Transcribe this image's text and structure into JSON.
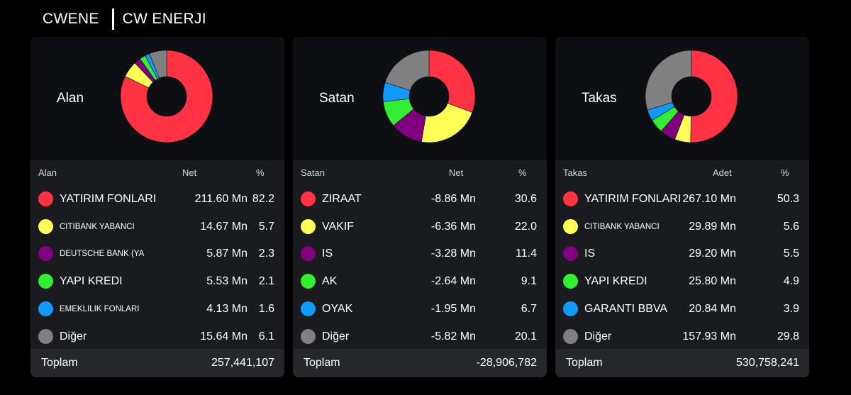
{
  "header": {
    "ticker": "CWENE",
    "company": "CW ENERJI"
  },
  "cards": [
    {
      "chart_label": "Alan",
      "col_name": "Alan",
      "col_value": "Net",
      "col_pct": "%",
      "rows": [
        {
          "name": "YATIRIM FONLARI",
          "value": "211.60 Mn",
          "pct": "82.2",
          "color": "#ff3344"
        },
        {
          "name": "CITIBANK YABANCI",
          "value": "14.67 Mn",
          "pct": "5.7",
          "color": "#ffff55"
        },
        {
          "name": "DEUTSCHE BANK (YA...",
          "value": "5.87 Mn",
          "pct": "2.3",
          "color": "#800080"
        },
        {
          "name": "YAPI KREDI",
          "value": "5.53 Mn",
          "pct": "2.1",
          "color": "#33ee33"
        },
        {
          "name": "EMEKLILIK FONLARI",
          "value": "4.13 Mn",
          "pct": "1.6",
          "color": "#1199ff"
        },
        {
          "name": "Diğer",
          "value": "15.64 Mn",
          "pct": "6.1",
          "color": "#808080"
        }
      ],
      "total_label": "Toplam",
      "total_value": "257,441,107"
    },
    {
      "chart_label": "Satan",
      "col_name": "Satan",
      "col_value": "Net",
      "col_pct": "%",
      "rows": [
        {
          "name": "ZIRAAT",
          "value": "-8.86 Mn",
          "pct": "30.6",
          "color": "#ff3344"
        },
        {
          "name": "VAKIF",
          "value": "-6.36 Mn",
          "pct": "22.0",
          "color": "#ffff55"
        },
        {
          "name": "IS",
          "value": "-3.28 Mn",
          "pct": "11.4",
          "color": "#800080"
        },
        {
          "name": "AK",
          "value": "-2.64 Mn",
          "pct": "9.1",
          "color": "#33ee33"
        },
        {
          "name": "OYAK",
          "value": "-1.95 Mn",
          "pct": "6.7",
          "color": "#1199ff"
        },
        {
          "name": "Diğer",
          "value": "-5.82 Mn",
          "pct": "20.1",
          "color": "#808080"
        }
      ],
      "total_label": "Toplam",
      "total_value": "-28,906,782"
    },
    {
      "chart_label": "Takas",
      "col_name": "Takas",
      "col_value": "Adet",
      "col_pct": "%",
      "rows": [
        {
          "name": "YATIRIM FONLARI",
          "value": "267.10 Mn",
          "pct": "50.3",
          "color": "#ff3344"
        },
        {
          "name": "CITIBANK YABANCI",
          "value": "29.89 Mn",
          "pct": "5.6",
          "color": "#ffff55"
        },
        {
          "name": "IS",
          "value": "29.20 Mn",
          "pct": "5.5",
          "color": "#800080"
        },
        {
          "name": "YAPI KREDI",
          "value": "25.80 Mn",
          "pct": "4.9",
          "color": "#33ee33"
        },
        {
          "name": "GARANTI BBVA",
          "value": "20.84 Mn",
          "pct": "3.9",
          "color": "#1199ff"
        },
        {
          "name": "Diğer",
          "value": "157.93 Mn",
          "pct": "29.8",
          "color": "#808080"
        }
      ],
      "total_label": "Toplam",
      "total_value": "530,758,241"
    }
  ],
  "chart_data": [
    {
      "type": "pie",
      "title": "Alan",
      "categories": [
        "YATIRIM FONLARI",
        "CITIBANK YABANCI",
        "DEUTSCHE BANK (YA...",
        "YAPI KREDI",
        "EMEKLILIK FONLARI",
        "Diğer"
      ],
      "values": [
        82.2,
        5.7,
        2.3,
        2.1,
        1.6,
        6.1
      ]
    },
    {
      "type": "pie",
      "title": "Satan",
      "categories": [
        "ZIRAAT",
        "VAKIF",
        "IS",
        "AK",
        "OYAK",
        "Diğer"
      ],
      "values": [
        30.6,
        22.0,
        11.4,
        9.1,
        6.7,
        20.1
      ]
    },
    {
      "type": "pie",
      "title": "Takas",
      "categories": [
        "YATIRIM FONLARI",
        "CITIBANK YABANCI",
        "IS",
        "YAPI KREDI",
        "GARANTI BBVA",
        "Diğer"
      ],
      "values": [
        50.3,
        5.6,
        5.5,
        4.9,
        3.9,
        29.8
      ]
    }
  ]
}
